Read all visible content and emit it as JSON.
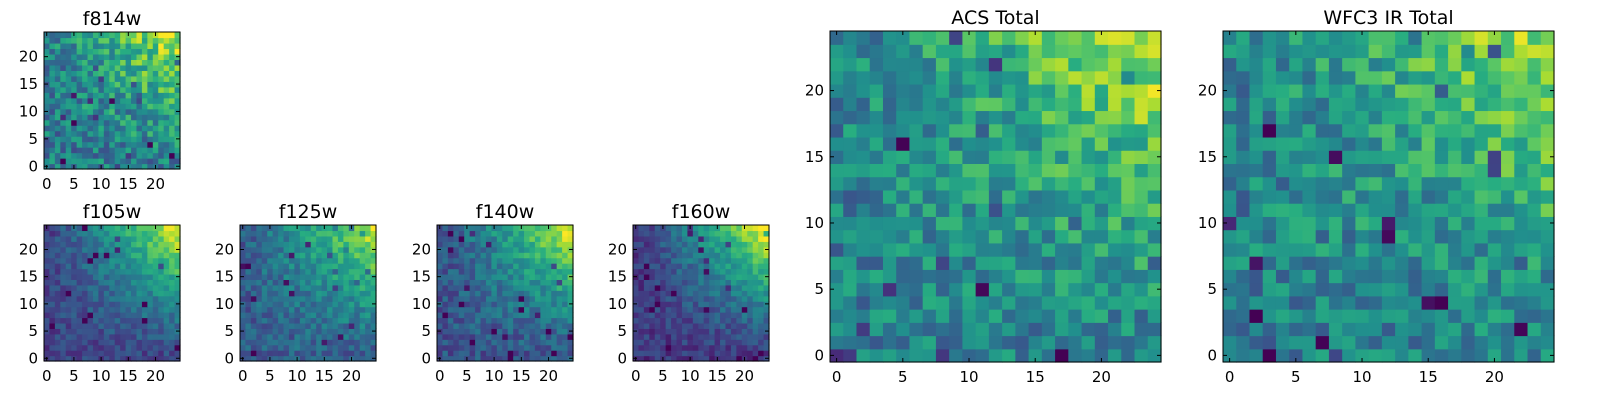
{
  "chart_data": [
    {
      "id": "f814w",
      "type": "heatmap",
      "title": "f814w",
      "xlabel": "",
      "ylabel": "",
      "xlim": [
        -0.5,
        24.5
      ],
      "ylim": [
        -0.5,
        24.5
      ],
      "xticks": [
        0,
        5,
        10,
        15,
        20
      ],
      "yticks": [
        0,
        5,
        10,
        15,
        20
      ],
      "colormap": "viridis",
      "gradient": [
        0.42,
        0.32,
        0.18
      ],
      "noise": 0.2,
      "seed": 814
    },
    {
      "id": "f105w",
      "type": "heatmap",
      "title": "f105w",
      "xlabel": "",
      "ylabel": "",
      "xlim": [
        -0.5,
        24.5
      ],
      "ylim": [
        -0.5,
        24.5
      ],
      "xticks": [
        0,
        5,
        10,
        15,
        20
      ],
      "yticks": [
        0,
        5,
        10,
        15,
        20
      ],
      "colormap": "viridis",
      "gradient": [
        0.2,
        0.4,
        0.36
      ],
      "noise": 0.1,
      "seed": 105
    },
    {
      "id": "f125w",
      "type": "heatmap",
      "title": "f125w",
      "xlabel": "",
      "ylabel": "",
      "xlim": [
        -0.5,
        24.5
      ],
      "ylim": [
        -0.5,
        24.5
      ],
      "xticks": [
        0,
        5,
        10,
        15,
        20
      ],
      "yticks": [
        0,
        5,
        10,
        15,
        20
      ],
      "colormap": "viridis",
      "gradient": [
        0.3,
        0.32,
        0.3
      ],
      "noise": 0.12,
      "seed": 125
    },
    {
      "id": "f140w",
      "type": "heatmap",
      "title": "f140w",
      "xlabel": "",
      "ylabel": "",
      "xlim": [
        -0.5,
        24.5
      ],
      "ylim": [
        -0.5,
        24.5
      ],
      "xticks": [
        0,
        5,
        10,
        15,
        20
      ],
      "yticks": [
        0,
        5,
        10,
        15,
        20
      ],
      "colormap": "viridis",
      "gradient": [
        0.26,
        0.32,
        0.38
      ],
      "noise": 0.12,
      "seed": 140
    },
    {
      "id": "f160w",
      "type": "heatmap",
      "title": "f160w",
      "xlabel": "",
      "ylabel": "",
      "xlim": [
        -0.5,
        24.5
      ],
      "ylim": [
        -0.5,
        24.5
      ],
      "xticks": [
        0,
        5,
        10,
        15,
        20
      ],
      "yticks": [
        0,
        5,
        10,
        15,
        20
      ],
      "colormap": "viridis",
      "gradient": [
        0.16,
        0.4,
        0.44
      ],
      "noise": 0.1,
      "seed": 160
    },
    {
      "id": "acs-total",
      "type": "heatmap",
      "title": "ACS Total",
      "xlabel": "",
      "ylabel": "",
      "xlim": [
        -0.5,
        24.5
      ],
      "ylim": [
        -0.5,
        24.5
      ],
      "xticks": [
        0,
        5,
        10,
        15,
        20
      ],
      "yticks": [
        0,
        5,
        10,
        15,
        20
      ],
      "colormap": "viridis",
      "gradient": [
        0.44,
        0.26,
        0.2
      ],
      "noise": 0.18,
      "seed": 901
    },
    {
      "id": "wfc3-ir-total",
      "type": "heatmap",
      "title": "WFC3 IR Total",
      "xlabel": "",
      "ylabel": "",
      "xlim": [
        -0.5,
        24.5
      ],
      "ylim": [
        -0.5,
        24.5
      ],
      "xticks": [
        0,
        5,
        10,
        15,
        20
      ],
      "yticks": [
        0,
        5,
        10,
        15,
        20
      ],
      "colormap": "viridis",
      "gradient": [
        0.44,
        0.22,
        0.22
      ],
      "noise": 0.18,
      "seed": 902
    }
  ]
}
